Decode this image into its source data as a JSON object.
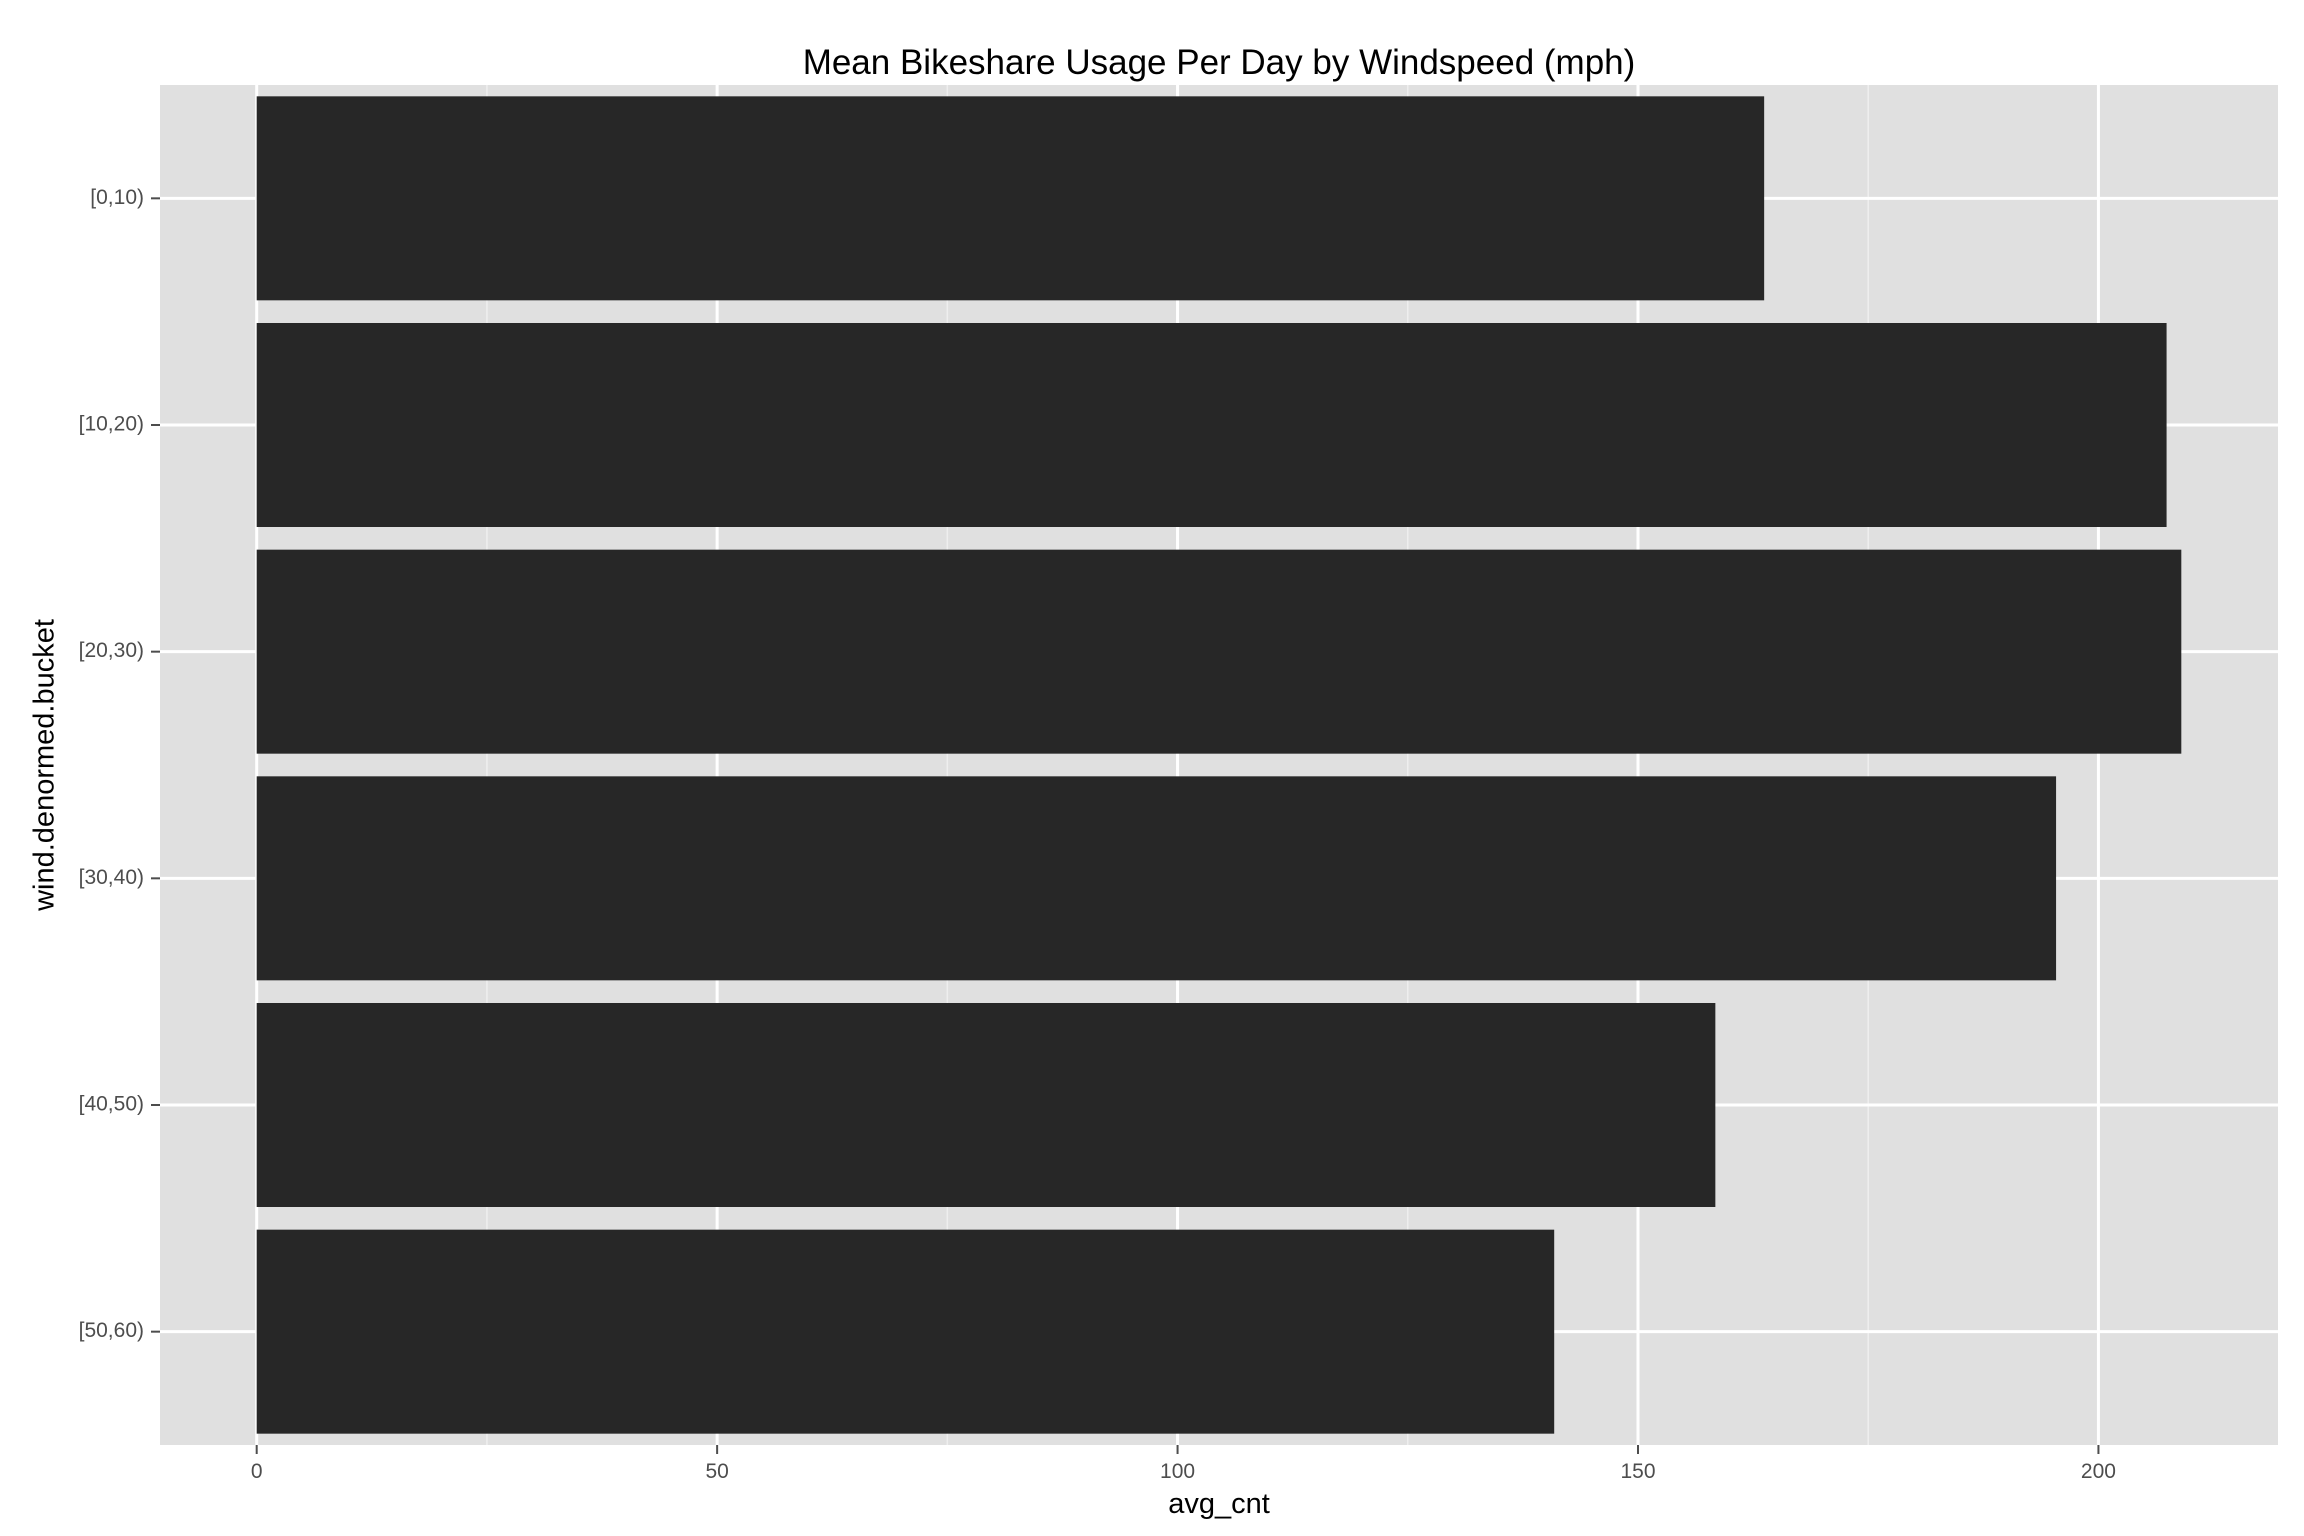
{
  "chart_data": {
    "type": "bar",
    "orientation": "horizontal",
    "title": "Mean Bikeshare Usage Per Day by Windspeed (mph)",
    "xlabel": "avg_cnt",
    "ylabel": "wind.denormed.bucket",
    "categories": [
      "[0,10)",
      "[10,20)",
      "[20,30)",
      "[30,40)",
      "[40,50)",
      "[50,60)"
    ],
    "values": [
      163.7,
      207.4,
      209.0,
      195.4,
      158.4,
      140.9
    ],
    "xlim": [
      -10.5,
      219.5
    ],
    "x_ticks": [
      0,
      50,
      100,
      150,
      200
    ],
    "x_tick_labels": [
      "0",
      "50",
      "100",
      "150",
      "200"
    ],
    "grid": true,
    "legend": "none",
    "colors": {
      "panel_background": "#e0e0e0",
      "grid_major": "#ffffff",
      "grid_minor": "#eeeeee",
      "bar_fill": "#272727",
      "tick_text": "#4d4d4d",
      "title_text": "#000000"
    }
  }
}
